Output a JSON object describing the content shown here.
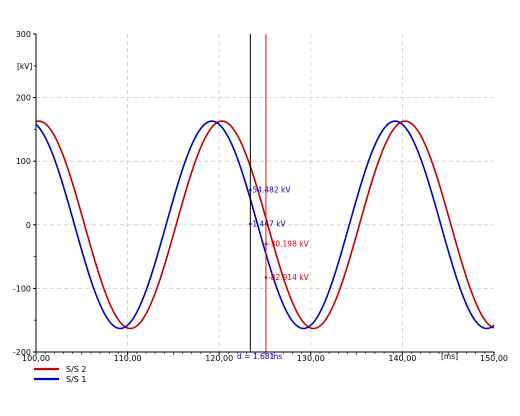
{
  "chart_data": {
    "type": "line",
    "xlabel": "[ms]",
    "ylabel": "[kV]",
    "xlim": [
      100,
      150
    ],
    "ylim": [
      -200,
      300
    ],
    "x_ticks": [
      {
        "value": 100,
        "label": "100,00"
      },
      {
        "value": 110,
        "label": "110,00"
      },
      {
        "value": 120,
        "label": "120,00"
      },
      {
        "value": 130,
        "label": "130,00"
      },
      {
        "value": 140,
        "label": "140,00"
      },
      {
        "value": 150,
        "label": "150,00"
      }
    ],
    "y_ticks": [
      {
        "value": 300,
        "label": "300"
      },
      {
        "value": 200,
        "label": "200"
      },
      {
        "value": 100,
        "label": "100"
      },
      {
        "value": 0,
        "label": "0"
      },
      {
        "value": -100,
        "label": "-100"
      },
      {
        "value": -200,
        "label": "-200"
      }
    ],
    "grid": true,
    "legend_position": "bottom-left",
    "series": [
      {
        "name": "S/S 2",
        "color": "#c00000",
        "amplitude": 163,
        "frequency_hz": 50,
        "peak_time_ms": 120.3
      },
      {
        "name": "S/S 1",
        "color": "#0000c0",
        "amplitude": 163,
        "frequency_hz": 50,
        "peak_time_ms": 119.2
      }
    ],
    "cursors": [
      {
        "x": 123.4,
        "color": "#000000",
        "labels": [
          {
            "text": "54.482 kV",
            "y": 54.482,
            "color": "#0000cc"
          },
          {
            "text": "1.447 kV",
            "y": 1.447,
            "color": "#0000cc"
          }
        ]
      },
      {
        "x": 125.1,
        "color": "#ff0000",
        "labels": [
          {
            "text": "-30.198 kV",
            "y": -30.198,
            "color": "#dd0000"
          },
          {
            "text": "-82.914 kV",
            "y": -82.914,
            "color": "#dd0000"
          }
        ]
      }
    ],
    "delta_label": "d = 1.681",
    "delta_unit": "ms"
  }
}
